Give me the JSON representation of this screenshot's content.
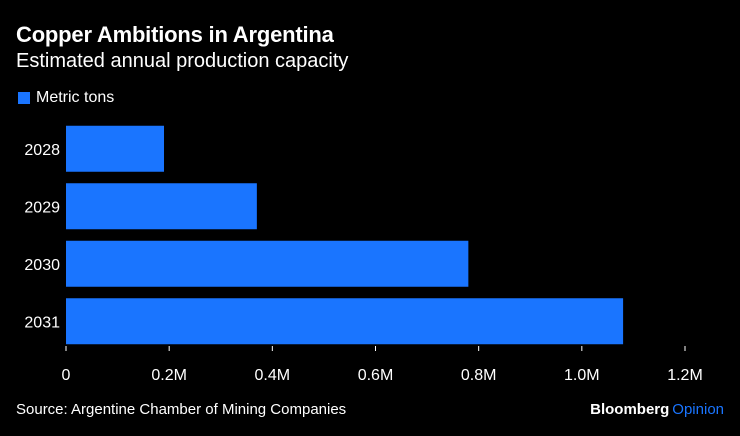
{
  "chart_data": {
    "type": "bar",
    "orientation": "horizontal",
    "title": "Copper Ambitions in Argentina",
    "subtitle": "Estimated annual production capacity",
    "categories": [
      "2028",
      "2029",
      "2030",
      "2031"
    ],
    "series": [
      {
        "name": "Metric tons",
        "values": [
          190000,
          370000,
          780000,
          1080000
        ],
        "color": "#1a75ff"
      }
    ],
    "xlim": [
      0,
      1200000
    ],
    "xticks": [
      0,
      200000,
      400000,
      600000,
      800000,
      1000000,
      1200000
    ],
    "xtick_labels": [
      "0",
      "0.2M",
      "0.4M",
      "0.6M",
      "0.8M",
      "1.0M",
      "1.2M"
    ],
    "xlabel": "",
    "ylabel": "",
    "legend": "top-left",
    "grid": false
  },
  "footer": {
    "source": "Source: Argentine Chamber of Mining Companies",
    "brand": "Bloomberg",
    "brand_suffix": "Opinion"
  },
  "colors": {
    "background": "#000000",
    "bar": "#1a75ff",
    "text": "#ffffff",
    "tick": "#ffffff",
    "brand_accent": "#1a75ff"
  }
}
